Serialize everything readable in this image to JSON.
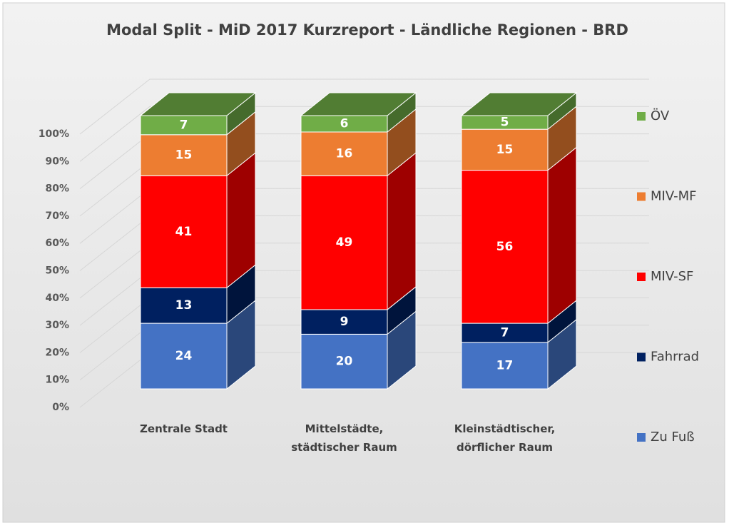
{
  "chart_data": {
    "type": "bar3d_stacked",
    "title": "Modal Split - MiD 2017 Kurzreport - Ländliche Regionen - BRD",
    "categories": [
      "Zentrale Stadt",
      "Mittelstädte, städtischer Raum",
      "Kleinstädtischer, dörflicher Raum"
    ],
    "series": [
      {
        "name": "Zu Fuß",
        "color": "#4472c4",
        "values": [
          24,
          20,
          17
        ]
      },
      {
        "name": "Fahrrad",
        "color": "#002060",
        "values": [
          13,
          9,
          7
        ]
      },
      {
        "name": "MIV-SF",
        "color": "#ff0000",
        "values": [
          41,
          49,
          56
        ]
      },
      {
        "name": "MIV-MF",
        "color": "#ed7d31",
        "values": [
          15,
          16,
          15
        ]
      },
      {
        "name": "ÖV",
        "color": "#70ad47",
        "values": [
          7,
          6,
          5
        ]
      }
    ],
    "ylim": [
      0,
      100
    ],
    "yticks": [
      {
        "value": 0,
        "label": "0%"
      },
      {
        "value": 10,
        "label": "10%"
      },
      {
        "value": 20,
        "label": "20%"
      },
      {
        "value": 30,
        "label": "30%"
      },
      {
        "value": 40,
        "label": "40%"
      },
      {
        "value": 50,
        "label": "50%"
      },
      {
        "value": 60,
        "label": "60%"
      },
      {
        "value": 70,
        "label": "70%"
      },
      {
        "value": 80,
        "label": "80%"
      },
      {
        "value": 90,
        "label": "90%"
      },
      {
        "value": 100,
        "label": "100%"
      }
    ],
    "grid": true,
    "legend": "right"
  }
}
